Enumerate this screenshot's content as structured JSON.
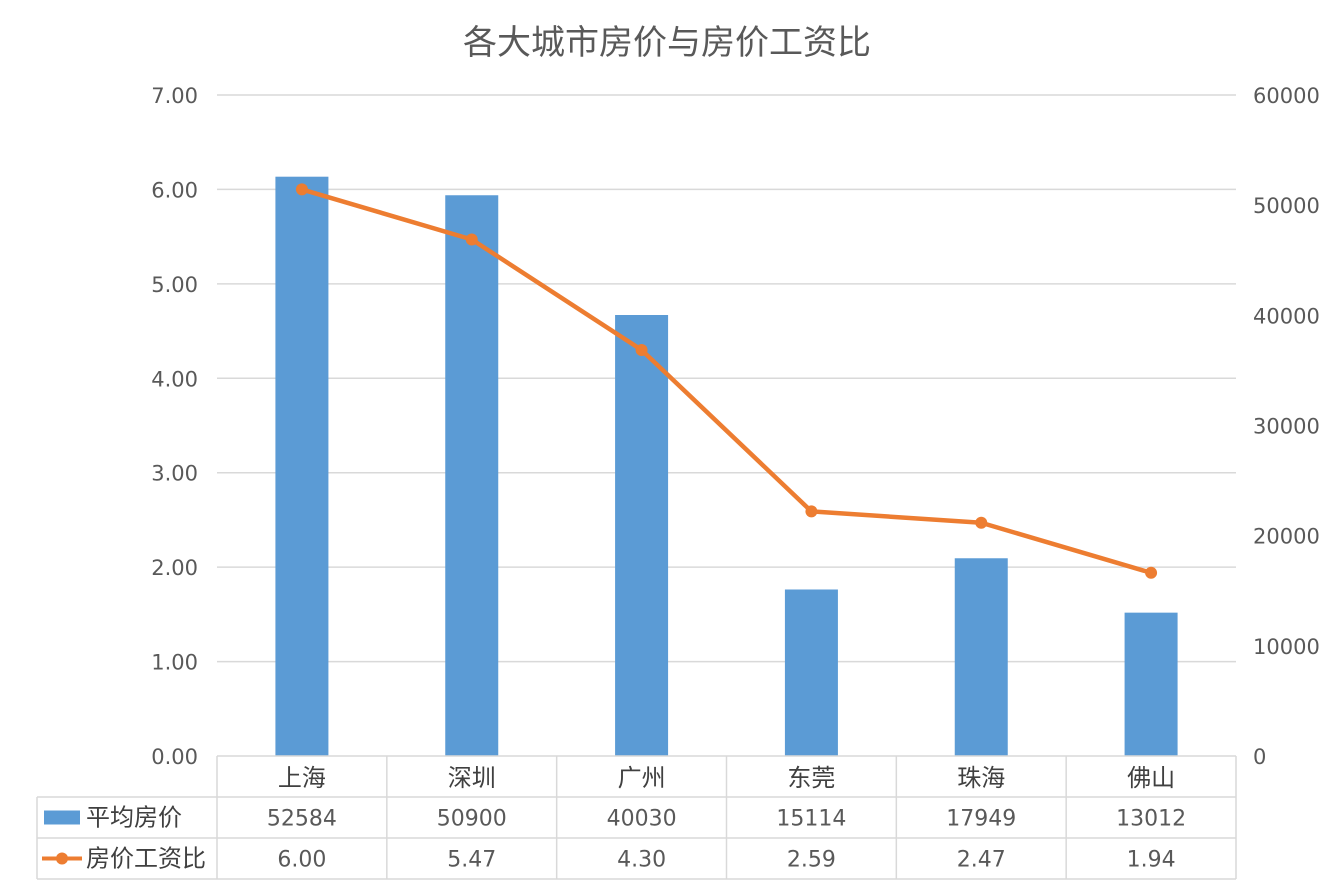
{
  "chart_data": {
    "type": "bar+line",
    "title": "各大城市房价与房价工资比",
    "categories": [
      "上海",
      "深圳",
      "广州",
      "东莞",
      "珠海",
      "佛山"
    ],
    "series": [
      {
        "name": "平均房价",
        "type": "bar",
        "axis": "right",
        "values": [
          52584,
          50900,
          40030,
          15114,
          17949,
          13012
        ],
        "value_labels": [
          "52584",
          "50900",
          "40030",
          "15114",
          "17949",
          "13012"
        ]
      },
      {
        "name": "房价工资比",
        "type": "line",
        "axis": "left",
        "values": [
          6.0,
          5.47,
          4.3,
          2.59,
          2.47,
          1.94
        ],
        "value_labels": [
          "6.00",
          "5.47",
          "4.30",
          "2.59",
          "2.47",
          "1.94"
        ]
      }
    ],
    "y_left": {
      "min": 0,
      "max": 7,
      "step": 1,
      "tick_labels": [
        "0.00",
        "1.00",
        "2.00",
        "3.00",
        "4.00",
        "5.00",
        "6.00",
        "7.00"
      ]
    },
    "y_right": {
      "min": 0,
      "max": 60000,
      "step": 10000,
      "tick_labels": [
        "0",
        "10000",
        "20000",
        "30000",
        "40000",
        "50000",
        "60000"
      ]
    },
    "grid": true,
    "legend": "data-table",
    "colors": {
      "bar": "#5b9bd5",
      "line": "#ed7d31",
      "grid": "#d9d9d9",
      "text": "#595959"
    }
  }
}
